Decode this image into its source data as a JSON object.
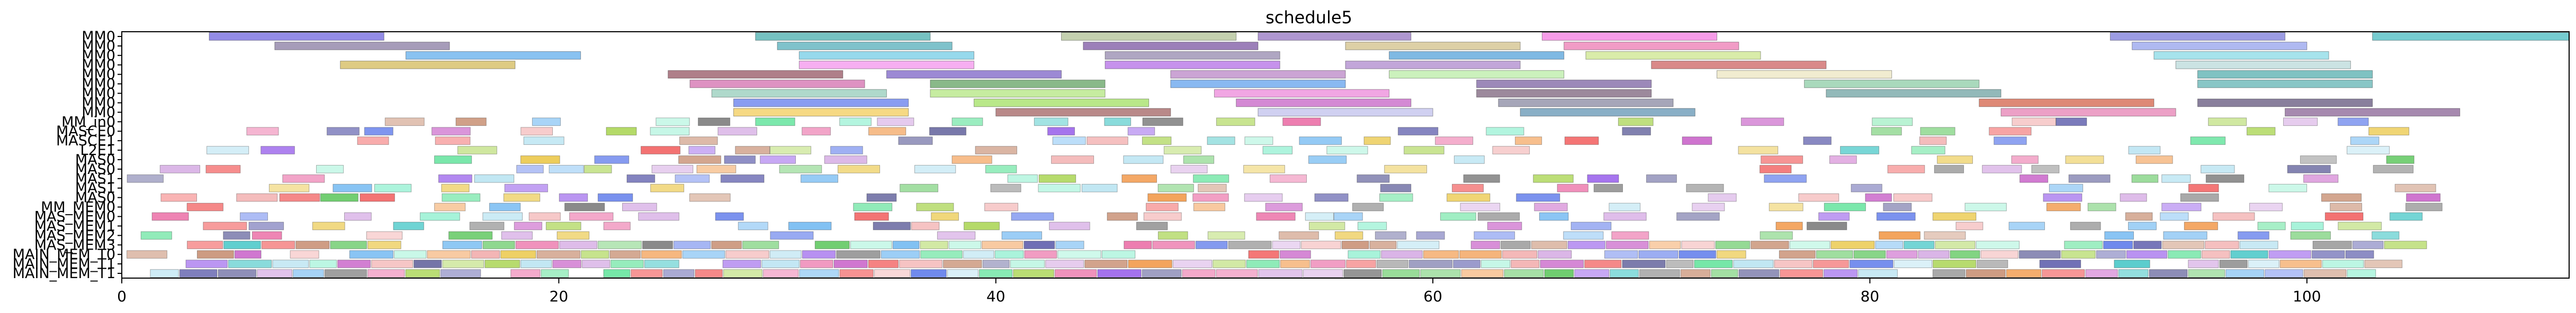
{
  "chart_data": {
    "type": "gantt",
    "title": "schedule5",
    "xlabel": "",
    "ylabel": "",
    "xlim": [
      0,
      112
    ],
    "xticks": [
      "0",
      "20",
      "40",
      "60",
      "80",
      "100"
    ],
    "xtick_values": [
      0,
      20,
      40,
      60,
      80,
      100
    ],
    "grid": false,
    "legend": "none",
    "row_labels": [
      "MM0",
      "MM0",
      "MM0",
      "MM0",
      "MM0",
      "MM0",
      "MM0",
      "MM0",
      "MM0",
      "MM_in0",
      "MASCE0",
      "MASCE1",
      "L2E1",
      "MAS0",
      "MAS0",
      "MAS1",
      "MAS1",
      "MAS0",
      "MM_MEM0",
      "MAS_MEM0",
      "MAS_MEM1",
      "MAS_MEM2",
      "MAS_MEM3",
      "MAIN_MEM_T0",
      "MAIN_MEM_T1",
      "MAIN_MEM_T1"
    ],
    "tasks": [
      {
        "row": 0,
        "start": 4,
        "end": 12,
        "color": "#4b3fd6"
      },
      {
        "row": 0,
        "start": 29,
        "end": 37,
        "color": "#1a9a9a"
      },
      {
        "row": 0,
        "start": 43,
        "end": 51,
        "color": "#9db07a"
      },
      {
        "row": 0,
        "start": 52,
        "end": 59,
        "color": "#7a52b0"
      },
      {
        "row": 0,
        "start": 65,
        "end": 73,
        "color": "#f05ad8"
      },
      {
        "row": 0,
        "start": 91,
        "end": 99,
        "color": "#5a5ad0"
      },
      {
        "row": 0,
        "start": 103,
        "end": 112,
        "color": "#1aaab0"
      },
      {
        "row": 1,
        "start": 7,
        "end": 15,
        "color": "#6a5a8a"
      },
      {
        "row": 1,
        "start": 30,
        "end": 38,
        "color": "#2a9aa8"
      },
      {
        "row": 1,
        "start": 44,
        "end": 52,
        "color": "#5a2a8a"
      },
      {
        "row": 1,
        "start": 56,
        "end": 64,
        "color": "#c7b06a"
      },
      {
        "row": 1,
        "start": 66,
        "end": 74,
        "color": "#e85aa0"
      },
      {
        "row": 1,
        "start": 92,
        "end": 100,
        "color": "#7a8ae8"
      },
      {
        "row": 2,
        "start": 13,
        "end": 21,
        "color": "#3a9ae8"
      },
      {
        "row": 2,
        "start": 31,
        "end": 39,
        "color": "#50c0e0"
      },
      {
        "row": 2,
        "start": 45,
        "end": 53,
        "color": "#7a6a9a"
      },
      {
        "row": 2,
        "start": 58,
        "end": 66,
        "color": "#2a8ad0"
      },
      {
        "row": 2,
        "start": 67,
        "end": 75,
        "color": "#c0e070"
      },
      {
        "row": 2,
        "start": 93,
        "end": 101,
        "color": "#6ad0e0"
      },
      {
        "row": 3,
        "start": 10,
        "end": 18,
        "color": "#c8a830"
      },
      {
        "row": 3,
        "start": 31,
        "end": 39,
        "color": "#f07ae8"
      },
      {
        "row": 3,
        "start": 45,
        "end": 53,
        "color": "#a04ae0"
      },
      {
        "row": 3,
        "start": 56,
        "end": 64,
        "color": "#9a6ac0"
      },
      {
        "row": 3,
        "start": 70,
        "end": 78,
        "color": "#c03a3a"
      },
      {
        "row": 3,
        "start": 94,
        "end": 102,
        "color": "#a8d0d0"
      },
      {
        "row": 4,
        "start": 25,
        "end": 33,
        "color": "#7a2a3a"
      },
      {
        "row": 4,
        "start": 35,
        "end": 43,
        "color": "#5a3ab8"
      },
      {
        "row": 4,
        "start": 48,
        "end": 56,
        "color": "#a868b8"
      },
      {
        "row": 4,
        "start": 58,
        "end": 66,
        "color": "#a8e890"
      },
      {
        "row": 4,
        "start": 73,
        "end": 81,
        "color": "#e8e0b0"
      },
      {
        "row": 4,
        "start": 95,
        "end": 103,
        "color": "#2a9a9a"
      },
      {
        "row": 5,
        "start": 26,
        "end": 34,
        "color": "#c84a9a"
      },
      {
        "row": 5,
        "start": 37,
        "end": 45,
        "color": "#3a8a3a"
      },
      {
        "row": 5,
        "start": 48,
        "end": 56,
        "color": "#3a8ae8"
      },
      {
        "row": 5,
        "start": 62,
        "end": 70,
        "color": "#5a3a8a"
      },
      {
        "row": 5,
        "start": 77,
        "end": 85,
        "color": "#70c090"
      },
      {
        "row": 5,
        "start": 95,
        "end": 103,
        "color": "#3aa0a0"
      },
      {
        "row": 6,
        "start": 27,
        "end": 35,
        "color": "#7ac0a8"
      },
      {
        "row": 6,
        "start": 37,
        "end": 45,
        "color": "#a0e060"
      },
      {
        "row": 6,
        "start": 50,
        "end": 58,
        "color": "#e86ad0"
      },
      {
        "row": 6,
        "start": 62,
        "end": 70,
        "color": "#5a3a5a"
      },
      {
        "row": 6,
        "start": 78,
        "end": 86,
        "color": "#4a8a8a"
      },
      {
        "row": 7,
        "start": 28,
        "end": 36,
        "color": "#3a5ae8"
      },
      {
        "row": 7,
        "start": 39,
        "end": 47,
        "color": "#8ad83a"
      },
      {
        "row": 7,
        "start": 51,
        "end": 59,
        "color": "#b83ab8"
      },
      {
        "row": 7,
        "start": 63,
        "end": 71,
        "color": "#6a6a8a"
      },
      {
        "row": 7,
        "start": 85,
        "end": 93,
        "color": "#c83a1a"
      },
      {
        "row": 7,
        "start": 95,
        "end": 103,
        "color": "#3a2a5a"
      },
      {
        "row": 8,
        "start": 28,
        "end": 36,
        "color": "#f0c030"
      },
      {
        "row": 8,
        "start": 40,
        "end": 48,
        "color": "#8a3a3a"
      },
      {
        "row": 8,
        "start": 52,
        "end": 60,
        "color": "#b0b0e8"
      },
      {
        "row": 8,
        "start": 64,
        "end": 72,
        "color": "#3a7aa0"
      },
      {
        "row": 8,
        "start": 86,
        "end": 94,
        "color": "#e060a0"
      },
      {
        "row": 8,
        "start": 99,
        "end": 107,
        "color": "#6a3a7a"
      }
    ]
  }
}
